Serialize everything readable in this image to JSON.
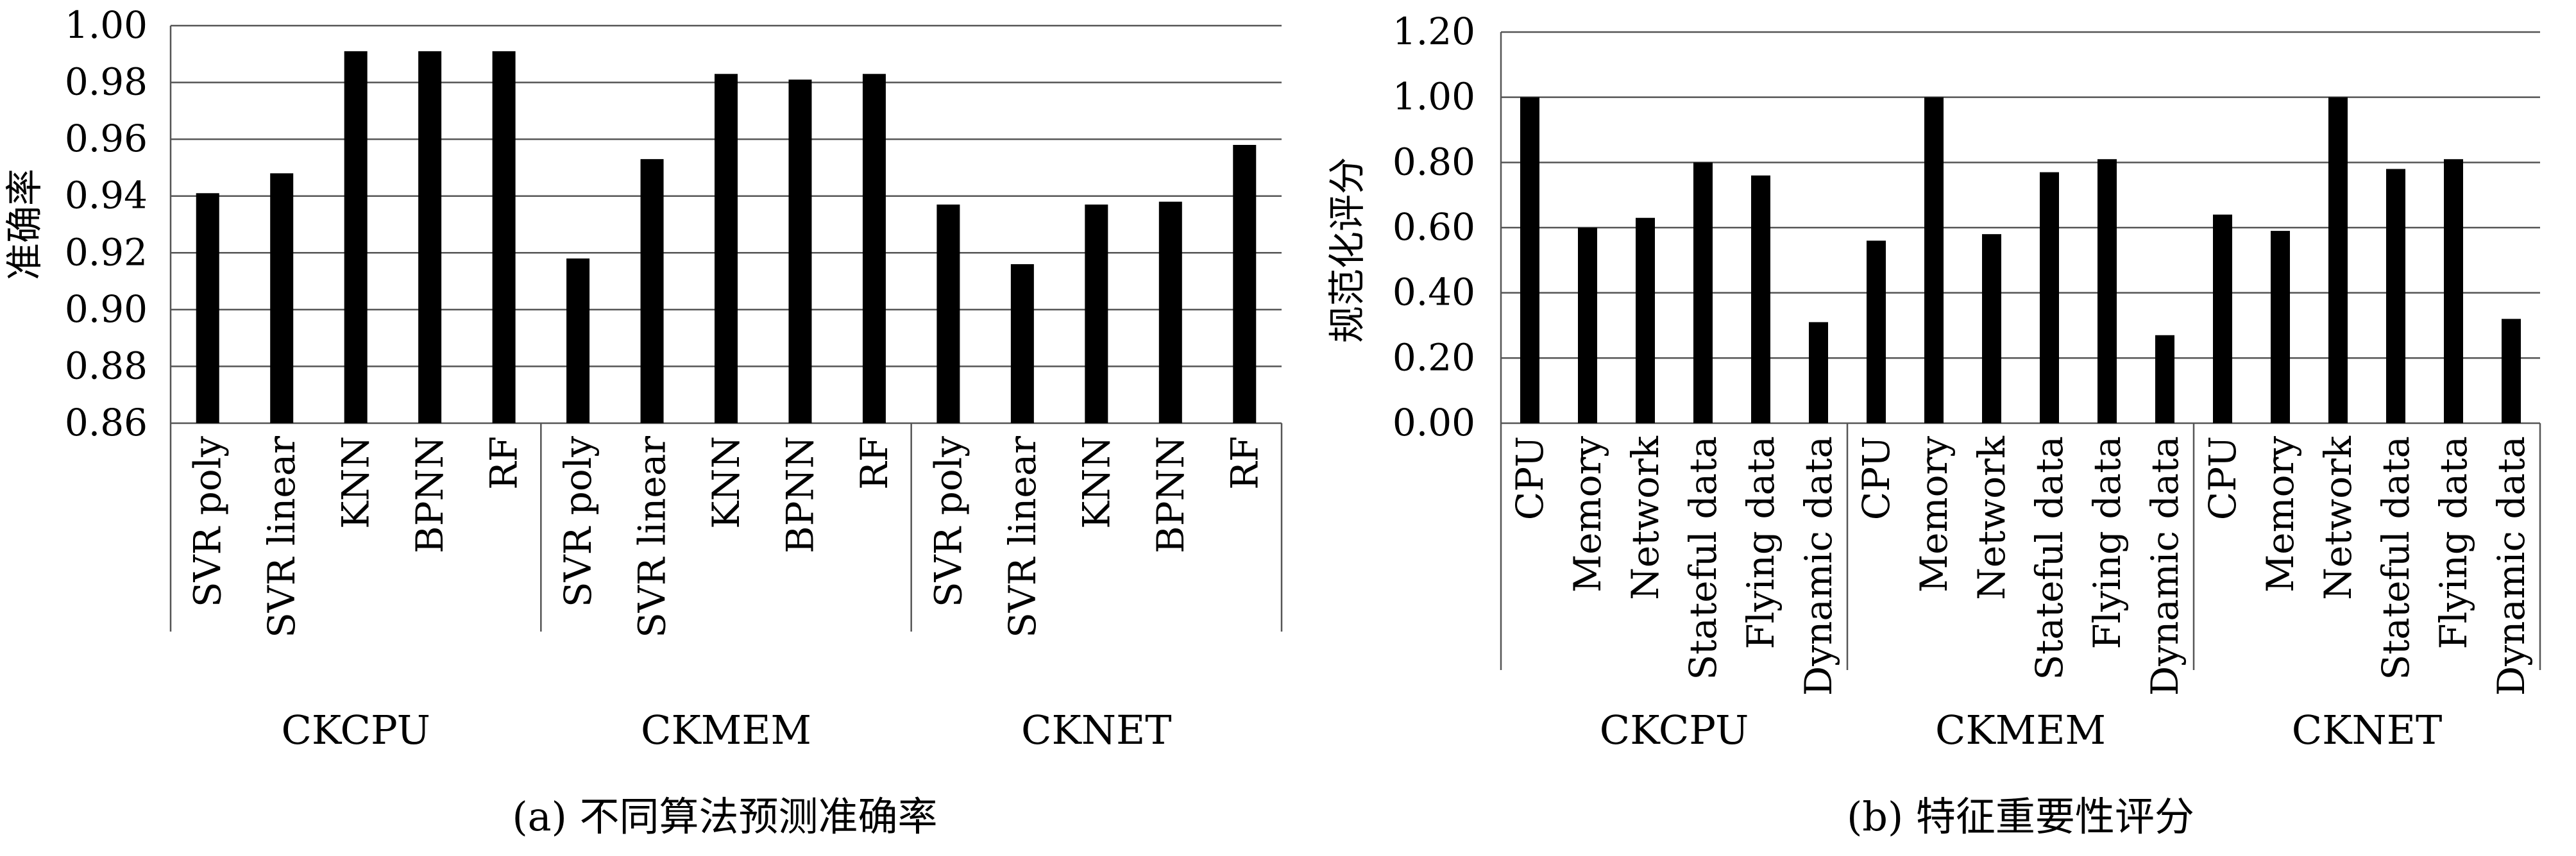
{
  "chart_data": [
    {
      "type": "bar",
      "ylabel": "准确率",
      "ylim": [
        0.86,
        1.0
      ],
      "ytick_step": 0.02,
      "ytick_decimals": 2,
      "grid": true,
      "caption": "(a) 不同算法预测准确率",
      "groups": [
        {
          "name": "CKCPU",
          "categories": [
            "SVR poly",
            "SVR linear",
            "KNN",
            "BPNN",
            "RF"
          ],
          "values": [
            0.941,
            0.948,
            0.991,
            0.991,
            0.991
          ]
        },
        {
          "name": "CKMEM",
          "categories": [
            "SVR poly",
            "SVR linear",
            "KNN",
            "BPNN",
            "RF"
          ],
          "values": [
            0.918,
            0.953,
            0.983,
            0.981,
            0.983
          ]
        },
        {
          "name": "CKNET",
          "categories": [
            "SVR poly",
            "SVR linear",
            "KNN",
            "BPNN",
            "RF"
          ],
          "values": [
            0.937,
            0.916,
            0.937,
            0.938,
            0.958
          ]
        }
      ]
    },
    {
      "type": "bar",
      "ylabel": "规范化评分",
      "ylim": [
        0.0,
        1.2
      ],
      "ytick_step": 0.2,
      "ytick_decimals": 2,
      "grid": true,
      "caption": "(b) 特征重要性评分",
      "groups": [
        {
          "name": "CKCPU",
          "categories": [
            "CPU",
            "Memory",
            "Network",
            "Stateful data",
            "Flying data",
            "Dynamic data"
          ],
          "values": [
            1.0,
            0.6,
            0.63,
            0.8,
            0.76,
            0.31
          ]
        },
        {
          "name": "CKMEM",
          "categories": [
            "CPU",
            "Memory",
            "Network",
            "Stateful data",
            "Flying data",
            "Dynamic data"
          ],
          "values": [
            0.56,
            1.0,
            0.58,
            0.77,
            0.81,
            0.27
          ]
        },
        {
          "name": "CKNET",
          "categories": [
            "CPU",
            "Memory",
            "Network",
            "Stateful data",
            "Flying data",
            "Dynamic data"
          ],
          "values": [
            0.64,
            0.59,
            1.0,
            0.78,
            0.81,
            0.32
          ]
        }
      ]
    }
  ]
}
